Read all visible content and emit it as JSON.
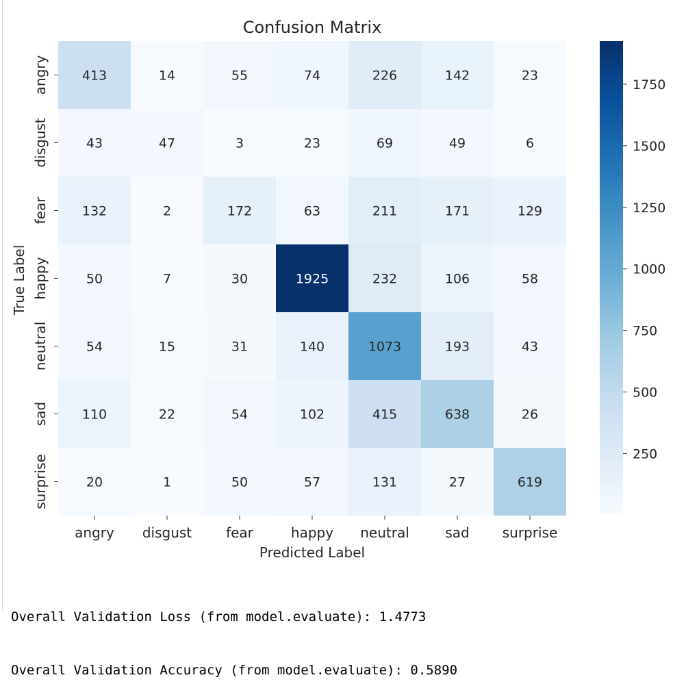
{
  "chart_data": {
    "type": "heatmap",
    "title": "Confusion Matrix",
    "xlabel": "Predicted Label",
    "ylabel": "True Label",
    "x_categories": [
      "angry",
      "disgust",
      "fear",
      "happy",
      "neutral",
      "sad",
      "surprise"
    ],
    "y_categories": [
      "angry",
      "disgust",
      "fear",
      "happy",
      "neutral",
      "sad",
      "surprise"
    ],
    "values": [
      [
        413,
        14,
        55,
        74,
        226,
        142,
        23
      ],
      [
        43,
        47,
        3,
        23,
        69,
        49,
        6
      ],
      [
        132,
        2,
        172,
        63,
        211,
        171,
        129
      ],
      [
        50,
        7,
        30,
        1925,
        232,
        106,
        58
      ],
      [
        54,
        15,
        31,
        140,
        1073,
        193,
        43
      ],
      [
        110,
        22,
        54,
        102,
        415,
        638,
        26
      ],
      [
        20,
        1,
        50,
        57,
        131,
        27,
        619
      ]
    ],
    "colormap": "Blues",
    "color_range": [
      1,
      1925
    ],
    "colorbar_ticks": [
      250,
      500,
      750,
      1000,
      1250,
      1500,
      1750
    ],
    "annotated": true,
    "grid": false,
    "legend": "colorbar-right"
  },
  "output": {
    "loss_line": "Overall Validation Loss (from model.evaluate): 1.4773",
    "accuracy_line": "Overall Validation Accuracy (from model.evaluate): 0.5890"
  }
}
